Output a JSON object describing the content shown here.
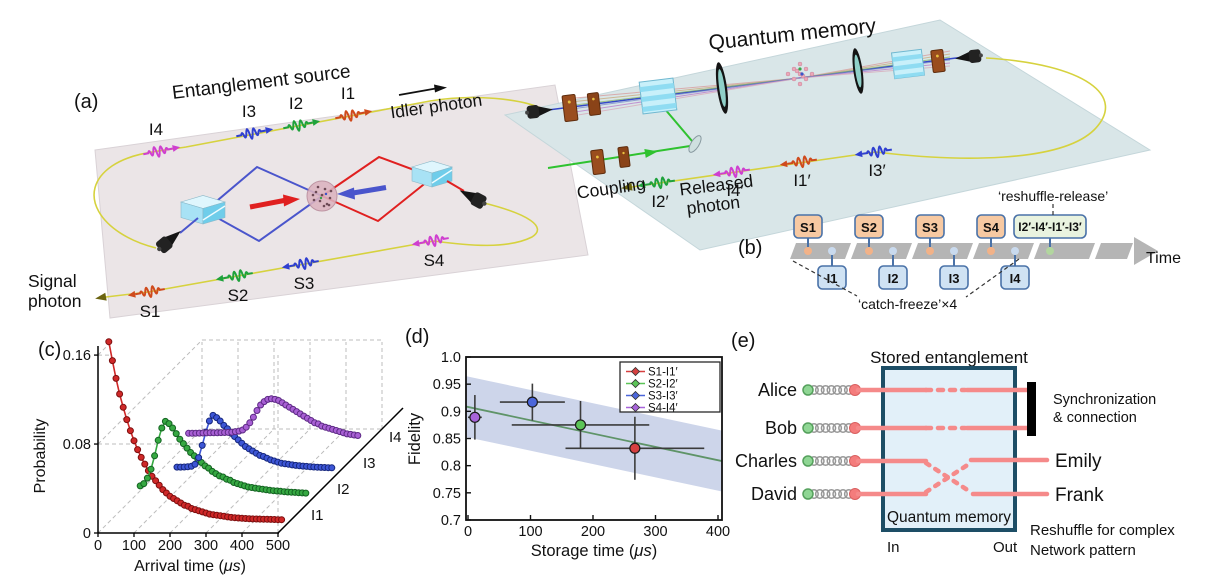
{
  "colors": {
    "photon_red": "#cf4a1c",
    "photon_green": "#1fa23c",
    "photon_blue": "#2f3fd0",
    "photon_magenta": "#cf3fcf",
    "coupling_green": "#2fc22f",
    "fiber_yellow": "#d6d23e",
    "beam_red": "#e02020",
    "beam_blue": "#4a55cc",
    "platform_left": "#ebe5e7",
    "platform_right": "#d9e6e8"
  },
  "panel_a": {
    "label": "(a)",
    "entanglement_source_title": "Entanglement source",
    "quantum_memory_title": "Quantum memory",
    "idler_photon_label": "Idler photon",
    "signal_photon_line1": "Signal",
    "signal_photon_line2": "photon",
    "coupling_label": "Coupling",
    "released_photon_line1": "Released",
    "released_photon_line2": "photon",
    "idler_waves": [
      {
        "label": "I4",
        "color": "#cf3fcf"
      },
      {
        "label": "I3",
        "color": "#2f3fd0"
      },
      {
        "label": "I2",
        "color": "#1fa23c"
      },
      {
        "label": "I1",
        "color": "#cf4a1c"
      }
    ],
    "signal_waves": [
      {
        "label": "S1",
        "color": "#cf4a1c"
      },
      {
        "label": "S2",
        "color": "#1fa23c"
      },
      {
        "label": "S3",
        "color": "#2f3fd0"
      },
      {
        "label": "S4",
        "color": "#cf3fcf"
      }
    ],
    "released_waves": [
      {
        "label": "I2′",
        "color": "#1fa23c"
      },
      {
        "label": "I4′",
        "color": "#cf3fcf"
      },
      {
        "label": "I1′",
        "color": "#cf4a1c"
      },
      {
        "label": "I3′",
        "color": "#2f3fd0"
      }
    ]
  },
  "panel_b": {
    "label": "(b)",
    "s_boxes": [
      "S1",
      "S2",
      "S3",
      "S4"
    ],
    "i_boxes": [
      "I1",
      "I2",
      "I3",
      "I4"
    ],
    "release_box": "I2′-I4′-I1′-I3′",
    "time_label": "Time",
    "catch_freeze_label": "‘catch-freeze’×4",
    "reshuffle_release_label": "‘reshuffle-release’",
    "colors": {
      "s_fill": "#f7c9a2",
      "i_fill": "#cfe2f3",
      "release_fill": "#e9f3df",
      "border": "#4a72a8",
      "bar": "#b5b5b5",
      "s_dot": "#f2b288",
      "i_dot": "#c9daee",
      "release_dot": "#b2d69f"
    }
  },
  "panel_c_meta": {
    "label": "(c)"
  },
  "panel_d_meta": {
    "label": "(d)"
  },
  "chart_data": [
    {
      "type": "line",
      "subtype": "3d-waterfall",
      "title": "",
      "xlabel_prefix": "Arrival time (",
      "xlabel_unit": "μs",
      "xlabel_suffix": ")",
      "ylabel": "Probability",
      "xlim": [
        0,
        500
      ],
      "ylim": [
        0,
        0.17
      ],
      "x_ticks": [
        0,
        100,
        200,
        300,
        400,
        500
      ],
      "x_tick_labels": [
        "0",
        "100",
        "200",
        "300",
        "400",
        "500"
      ],
      "y_ticks": [
        0,
        0.08,
        0.16
      ],
      "y_tick_labels": [
        "0",
        "0.08",
        "0.16"
      ],
      "depth_labels": [
        "I1",
        "I2",
        "I3",
        "I4"
      ],
      "grid": true,
      "series": [
        {
          "name": "I1",
          "depth": 0,
          "color": "#cf2828",
          "edge": "#7d0f0f",
          "points": [
            [
              30,
              0.172
            ],
            [
              40,
              0.155
            ],
            [
              50,
              0.139
            ],
            [
              60,
              0.125
            ],
            [
              70,
              0.113
            ],
            [
              80,
              0.102
            ],
            [
              90,
              0.092
            ],
            [
              100,
              0.083
            ],
            [
              110,
              0.075
            ],
            [
              120,
              0.068
            ],
            [
              130,
              0.062
            ],
            [
              140,
              0.056
            ],
            [
              150,
              0.051
            ],
            [
              160,
              0.047
            ],
            [
              170,
              0.043
            ],
            [
              180,
              0.039
            ],
            [
              190,
              0.036
            ],
            [
              200,
              0.033
            ],
            [
              210,
              0.031
            ],
            [
              220,
              0.029
            ],
            [
              230,
              0.027
            ],
            [
              240,
              0.025
            ],
            [
              250,
              0.024
            ],
            [
              260,
              0.022
            ],
            [
              270,
              0.021
            ],
            [
              280,
              0.02
            ],
            [
              290,
              0.019
            ],
            [
              300,
              0.018
            ],
            [
              310,
              0.017
            ],
            [
              320,
              0.0165
            ],
            [
              330,
              0.016
            ],
            [
              340,
              0.0155
            ],
            [
              350,
              0.015
            ],
            [
              360,
              0.0145
            ],
            [
              370,
              0.014
            ],
            [
              380,
              0.0138
            ],
            [
              390,
              0.0135
            ],
            [
              400,
              0.0132
            ],
            [
              410,
              0.013
            ],
            [
              420,
              0.0128
            ],
            [
              430,
              0.0127
            ],
            [
              440,
              0.0126
            ],
            [
              450,
              0.0125
            ],
            [
              460,
              0.0124
            ],
            [
              470,
              0.0123
            ],
            [
              480,
              0.0122
            ],
            [
              490,
              0.0121
            ],
            [
              500,
              0.012
            ],
            [
              510,
              0.012
            ]
          ]
        },
        {
          "name": "I2",
          "depth": 1,
          "color": "#36a842",
          "edge": "#136321",
          "points": [
            [
              45,
              0.019
            ],
            [
              55,
              0.021
            ],
            [
              65,
              0.026
            ],
            [
              75,
              0.034
            ],
            [
              85,
              0.046
            ],
            [
              95,
              0.06
            ],
            [
              105,
              0.071
            ],
            [
              115,
              0.077
            ],
            [
              125,
              0.075
            ],
            [
              135,
              0.071
            ],
            [
              145,
              0.066
            ],
            [
              155,
              0.061
            ],
            [
              165,
              0.057
            ],
            [
              175,
              0.053
            ],
            [
              185,
              0.049
            ],
            [
              195,
              0.046
            ],
            [
              205,
              0.043
            ],
            [
              215,
              0.04
            ],
            [
              225,
              0.037
            ],
            [
              235,
              0.035
            ],
            [
              245,
              0.032
            ],
            [
              255,
              0.03
            ],
            [
              265,
              0.028
            ],
            [
              275,
              0.027
            ],
            [
              285,
              0.025
            ],
            [
              295,
              0.024
            ],
            [
              305,
              0.022
            ],
            [
              315,
              0.021
            ],
            [
              325,
              0.02
            ],
            [
              335,
              0.019
            ],
            [
              345,
              0.018
            ],
            [
              355,
              0.0175
            ],
            [
              365,
              0.017
            ],
            [
              375,
              0.0165
            ],
            [
              385,
              0.016
            ],
            [
              395,
              0.0155
            ],
            [
              405,
              0.015
            ],
            [
              415,
              0.0147
            ],
            [
              425,
              0.0144
            ],
            [
              435,
              0.0141
            ],
            [
              445,
              0.0138
            ],
            [
              455,
              0.0135
            ],
            [
              465,
              0.0133
            ],
            [
              475,
              0.0131
            ],
            [
              485,
              0.0129
            ],
            [
              495,
              0.0127
            ],
            [
              505,
              0.0125
            ]
          ]
        },
        {
          "name": "I3",
          "depth": 2,
          "color": "#3d56d6",
          "edge": "#16277d",
          "points": [
            [
              75,
              0.0125
            ],
            [
              85,
              0.0125
            ],
            [
              95,
              0.0126
            ],
            [
              105,
              0.0128
            ],
            [
              115,
              0.0132
            ],
            [
              125,
              0.015
            ],
            [
              135,
              0.021
            ],
            [
              145,
              0.032
            ],
            [
              155,
              0.044
            ],
            [
              165,
              0.054
            ],
            [
              175,
              0.059
            ],
            [
              185,
              0.057
            ],
            [
              195,
              0.054
            ],
            [
              205,
              0.05
            ],
            [
              215,
              0.047
            ],
            [
              225,
              0.043
            ],
            [
              235,
              0.04
            ],
            [
              245,
              0.037
            ],
            [
              255,
              0.034
            ],
            [
              265,
              0.031
            ],
            [
              275,
              0.029
            ],
            [
              285,
              0.027
            ],
            [
              295,
              0.025
            ],
            [
              305,
              0.023
            ],
            [
              315,
              0.022
            ],
            [
              325,
              0.0205
            ],
            [
              335,
              0.019
            ],
            [
              345,
              0.018
            ],
            [
              355,
              0.017
            ],
            [
              365,
              0.016
            ],
            [
              375,
              0.0155
            ],
            [
              385,
              0.015
            ],
            [
              395,
              0.0145
            ],
            [
              405,
              0.014
            ],
            [
              415,
              0.0137
            ],
            [
              425,
              0.0134
            ],
            [
              435,
              0.0131
            ],
            [
              445,
              0.0128
            ],
            [
              455,
              0.0126
            ],
            [
              465,
              0.0124
            ],
            [
              475,
              0.0122
            ],
            [
              485,
              0.0121
            ],
            [
              495,
              0.012
            ],
            [
              505,
              0.0119
            ]
          ]
        },
        {
          "name": "I4",
          "depth": 3,
          "color": "#a85fd4",
          "edge": "#5d2a85",
          "points": [
            [
              35,
              0.0195
            ],
            [
              45,
              0.0195
            ],
            [
              55,
              0.0196
            ],
            [
              65,
              0.0197
            ],
            [
              75,
              0.0198
            ],
            [
              85,
              0.0199
            ],
            [
              95,
              0.02
            ],
            [
              105,
              0.02
            ],
            [
              115,
              0.02
            ],
            [
              125,
              0.0201
            ],
            [
              135,
              0.0202
            ],
            [
              145,
              0.0203
            ],
            [
              155,
              0.0205
            ],
            [
              165,
              0.021
            ],
            [
              175,
              0.0215
            ],
            [
              185,
              0.0225
            ],
            [
              195,
              0.025
            ],
            [
              205,
              0.029
            ],
            [
              215,
              0.034
            ],
            [
              225,
              0.04
            ],
            [
              235,
              0.045
            ],
            [
              245,
              0.048
            ],
            [
              255,
              0.05
            ],
            [
              265,
              0.0505
            ],
            [
              275,
              0.05
            ],
            [
              285,
              0.049
            ],
            [
              295,
              0.047
            ],
            [
              305,
              0.045
            ],
            [
              315,
              0.043
            ],
            [
              325,
              0.041
            ],
            [
              335,
              0.039
            ],
            [
              345,
              0.037
            ],
            [
              355,
              0.035
            ],
            [
              365,
              0.033
            ],
            [
              375,
              0.031
            ],
            [
              385,
              0.029
            ],
            [
              395,
              0.028
            ],
            [
              405,
              0.026
            ],
            [
              415,
              0.025
            ],
            [
              425,
              0.024
            ],
            [
              435,
              0.023
            ],
            [
              445,
              0.022
            ],
            [
              455,
              0.021
            ],
            [
              465,
              0.02
            ],
            [
              475,
              0.019
            ],
            [
              485,
              0.0185
            ],
            [
              495,
              0.018
            ],
            [
              505,
              0.0175
            ]
          ]
        }
      ]
    },
    {
      "type": "scatter",
      "subtype": "errorbar",
      "title": "",
      "xlabel_prefix": "Storage time (",
      "xlabel_unit": "μs",
      "xlabel_suffix": ")",
      "ylabel": "Fidelity",
      "xlim": [
        0,
        400
      ],
      "ylim": [
        0.7,
        1.0
      ],
      "x_ticks": [
        0,
        100,
        200,
        300,
        400
      ],
      "x_tick_labels": [
        "0",
        "100",
        "200",
        "300",
        "400"
      ],
      "y_ticks": [
        1.0,
        0.95,
        0.9,
        0.85,
        0.8,
        0.75,
        0.7
      ],
      "y_tick_labels": [
        "1.0",
        "0.95",
        "0.9",
        "0.85",
        "0.8",
        "0.75",
        "0.7"
      ],
      "legend_position": "top-right",
      "fit_line": {
        "color": "#5f9468",
        "f_at_0": 0.908,
        "f_at_400": 0.81
      },
      "band": {
        "color": "#cdd5ea",
        "halfwidth": 0.056
      },
      "errorbar_color": "#3c3c3c",
      "series": [
        {
          "name": "S1-I1′",
          "color": "#d64040",
          "t": 267,
          "fidelity": 0.832,
          "t_err": 111,
          "f_err": 0.058
        },
        {
          "name": "S2-I2′",
          "color": "#5bc457",
          "t": 180,
          "fidelity": 0.875,
          "t_err": 110,
          "f_err": 0.044
        },
        {
          "name": "S3-I3′",
          "color": "#4b66da",
          "t": 103,
          "fidelity": 0.917,
          "t_err": 52,
          "f_err": 0.034
        },
        {
          "name": "S4-I4′",
          "color": "#a864da",
          "t": 11,
          "fidelity": 0.889,
          "t_err": 11,
          "f_err": 0.041
        }
      ]
    }
  ],
  "panel_e": {
    "label": "(e)",
    "title": "Stored entanglement",
    "box_label": "Quantum memory",
    "in_label": "In",
    "out_label": "Out",
    "left_parties": [
      "Alice",
      "Bob",
      "Charles",
      "David"
    ],
    "right_parties": [
      "Emily",
      "Frank"
    ],
    "sync_line1": "Synchronization",
    "sync_line2": "& connection",
    "note_line1": "Reshuffle for complex",
    "note_line2": "Network pattern",
    "colors": {
      "line": "#f58a8a",
      "dot_red": "#f47c7c",
      "dot_green": "#8fd694",
      "box_border": "#1d4e66",
      "box_fill": "#e2f0f9",
      "coil": "#979797",
      "bar": "#000000"
    }
  }
}
